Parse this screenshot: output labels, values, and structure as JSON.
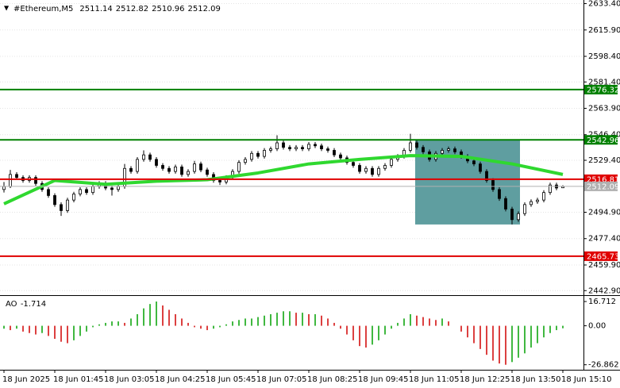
{
  "chart_data": {
    "type": "candlestick",
    "symbol": "#Ethereum,M5",
    "ylim": [
      2440.4,
      2635.8
    ],
    "yticks": [
      {
        "value": 2633.4,
        "label": "2633.40"
      },
      {
        "value": 2615.9,
        "label": "2615.90"
      },
      {
        "value": 2598.4,
        "label": "2598.40"
      },
      {
        "value": 2581.4,
        "label": "2581.40"
      },
      {
        "value": 2563.9,
        "label": "2563.90"
      },
      {
        "value": 2546.4,
        "label": "2546.40"
      },
      {
        "value": 2529.4,
        "label": "2529.40"
      },
      {
        "value": 2494.9,
        "label": "2494.90"
      },
      {
        "value": 2477.4,
        "label": "2477.40"
      },
      {
        "value": 2459.9,
        "label": "2459.90"
      },
      {
        "value": 2442.9,
        "label": "2442.90"
      }
    ],
    "grid": true,
    "up_color": "#ffffff",
    "down_color": "#000000",
    "current_color": "#b0b0b0",
    "candles": [
      [
        2510,
        2515,
        2508,
        2512
      ],
      [
        2512,
        2523,
        2511,
        2520
      ],
      [
        2520,
        2521.5,
        2516.5,
        2518
      ],
      [
        2518,
        2519.5,
        2514.5,
        2516
      ],
      [
        2516,
        2519.5,
        2514.5,
        2518
      ],
      [
        2518,
        2519.5,
        2512.5,
        2514
      ],
      [
        2514,
        2515.5,
        2508.5,
        2510
      ],
      [
        2510,
        2511.5,
        2504.5,
        2506
      ],
      [
        2506,
        2507.5,
        2498.5,
        2500
      ],
      [
        2500,
        2501.5,
        2492.5,
        2496
      ],
      [
        2496,
        2504.5,
        2494.5,
        2503
      ],
      [
        2503,
        2508.5,
        2501.5,
        2507
      ],
      [
        2507,
        2511.5,
        2505.5,
        2510
      ],
      [
        2510,
        2511.5,
        2506.5,
        2508
      ],
      [
        2508,
        2513.5,
        2506.5,
        2512
      ],
      [
        2512,
        2515.5,
        2510.5,
        2514
      ],
      [
        2514,
        2515.5,
        2509.5,
        2511
      ],
      [
        2511,
        2512.5,
        2506,
        2510
      ],
      [
        2510,
        2513.5,
        2508.5,
        2512
      ],
      [
        2512,
        2527,
        2510.5,
        2524
      ],
      [
        2524,
        2525.5,
        2520.5,
        2522
      ],
      [
        2522,
        2531.5,
        2520.5,
        2530
      ],
      [
        2530,
        2536,
        2528.5,
        2533
      ],
      [
        2533,
        2534.5,
        2528.5,
        2530
      ],
      [
        2530,
        2531.5,
        2524.5,
        2526
      ],
      [
        2526,
        2527.5,
        2522.5,
        2524
      ],
      [
        2524,
        2525.5,
        2520.5,
        2522
      ],
      [
        2522,
        2526.5,
        2520.5,
        2525
      ],
      [
        2525,
        2526.5,
        2518.5,
        2520
      ],
      [
        2520,
        2523.5,
        2518.5,
        2522
      ],
      [
        2522,
        2529,
        2520.5,
        2527
      ],
      [
        2527,
        2528.5,
        2521.5,
        2523
      ],
      [
        2523,
        2524.5,
        2518.5,
        2520
      ],
      [
        2520,
        2521.5,
        2514.5,
        2516
      ],
      [
        2516,
        2517.5,
        2513,
        2515
      ],
      [
        2515,
        2519.5,
        2513.5,
        2518
      ],
      [
        2518,
        2523.5,
        2516.5,
        2522
      ],
      [
        2522,
        2529.5,
        2520.5,
        2528
      ],
      [
        2528,
        2531.5,
        2526.5,
        2530
      ],
      [
        2530,
        2535.5,
        2528.5,
        2534
      ],
      [
        2534,
        2535.5,
        2530.5,
        2532
      ],
      [
        2532,
        2537.5,
        2530.5,
        2536
      ],
      [
        2536,
        2538.5,
        2534.5,
        2537
      ],
      [
        2537,
        2546,
        2535.5,
        2541
      ],
      [
        2541,
        2542.5,
        2536.5,
        2538
      ],
      [
        2538,
        2539.5,
        2535.5,
        2537
      ],
      [
        2537,
        2539.5,
        2535.5,
        2538
      ],
      [
        2538,
        2539.5,
        2535.5,
        2537
      ],
      [
        2537,
        2541.5,
        2535.5,
        2540
      ],
      [
        2540,
        2541.5,
        2537.5,
        2539
      ],
      [
        2539,
        2540.5,
        2535.5,
        2537
      ],
      [
        2537,
        2538.5,
        2534.5,
        2536
      ],
      [
        2536,
        2537.5,
        2531.5,
        2533
      ],
      [
        2533,
        2534.5,
        2529.5,
        2531
      ],
      [
        2531,
        2532.5,
        2526.5,
        2528
      ],
      [
        2528,
        2529.5,
        2524.5,
        2526
      ],
      [
        2526,
        2527.5,
        2520.5,
        2522
      ],
      [
        2522,
        2525.5,
        2520.5,
        2524
      ],
      [
        2524,
        2525.5,
        2518.5,
        2520
      ],
      [
        2520,
        2525.5,
        2518.5,
        2524
      ],
      [
        2524,
        2527.5,
        2522.5,
        2526
      ],
      [
        2526,
        2531.5,
        2524.5,
        2530
      ],
      [
        2530,
        2533.5,
        2528.5,
        2532
      ],
      [
        2532,
        2537.5,
        2530.5,
        2536
      ],
      [
        2536,
        2547,
        2534.5,
        2541
      ],
      [
        2541,
        2542.5,
        2536.5,
        2538
      ],
      [
        2538,
        2539.5,
        2533.5,
        2535
      ],
      [
        2535,
        2536.5,
        2528.5,
        2530
      ],
      [
        2530,
        2535.5,
        2528.5,
        2534
      ],
      [
        2534,
        2537.5,
        2532.5,
        2536
      ],
      [
        2536,
        2538.5,
        2534.5,
        2537
      ],
      [
        2537,
        2538.5,
        2533.5,
        2535
      ],
      [
        2535,
        2536.5,
        2530.5,
        2532
      ],
      [
        2532,
        2533.5,
        2527.5,
        2529
      ],
      [
        2529,
        2530.5,
        2525.5,
        2527
      ],
      [
        2527,
        2528.5,
        2520.5,
        2522
      ],
      [
        2522,
        2523.5,
        2514.5,
        2516
      ],
      [
        2516,
        2517.5,
        2508.5,
        2510
      ],
      [
        2510,
        2511.5,
        2502.5,
        2504
      ],
      [
        2504,
        2505.5,
        2495.5,
        2497
      ],
      [
        2497,
        2498.5,
        2486.8,
        2490
      ],
      [
        2490,
        2495.5,
        2488.5,
        2494
      ],
      [
        2494,
        2501.5,
        2492.5,
        2500
      ],
      [
        2500,
        2503.5,
        2498.5,
        2502
      ],
      [
        2502,
        2504.5,
        2500.5,
        2503
      ],
      [
        2503,
        2509.5,
        2501.5,
        2508
      ],
      [
        2508,
        2514.5,
        2506.5,
        2513
      ],
      [
        2513,
        2514.5,
        2509.5,
        2511
      ],
      [
        2511.14,
        2512.82,
        2510.96,
        2512.09
      ]
    ],
    "ma": {
      "color": "#2fd82f",
      "x": [
        0,
        8,
        16,
        24,
        32,
        40,
        48,
        56,
        64,
        72,
        80,
        88
      ],
      "values": [
        2500.5,
        2516,
        2513.5,
        2515.5,
        2516.5,
        2521,
        2527,
        2530,
        2532.5,
        2532,
        2527,
        2520
      ]
    },
    "levels": [
      {
        "value": 2576.32,
        "color": "#008000"
      },
      {
        "value": 2542.96,
        "color": "#008000"
      },
      {
        "value": 2516.81,
        "color": "#e00000"
      },
      {
        "value": 2465.73,
        "color": "#e00000"
      }
    ],
    "zone": {
      "color": "#5f9ea0",
      "top": 2542.96,
      "bottom": 2486.8,
      "start": 64.75,
      "end": 81.25
    },
    "ao": {
      "name": "AO",
      "ylim": [
        -30.3,
        20
      ],
      "yticks": [
        16.712,
        {
          "value": 0,
          "label": "0.00"
        },
        -26.862
      ],
      "up_color": "#00a000",
      "down_color": "#d00000",
      "values": [
        -2,
        -3,
        -2,
        -4,
        -5,
        -6,
        -5,
        -7,
        -9,
        -11,
        -12,
        -10,
        -7,
        -4,
        -1,
        1,
        2,
        3,
        3,
        2,
        5,
        8,
        12,
        15,
        16.712,
        14,
        11,
        8,
        5,
        2,
        -1,
        -2,
        -3,
        -2,
        -1,
        1,
        3,
        4,
        5,
        5,
        6,
        7,
        8,
        9,
        10,
        10,
        9,
        9,
        8,
        8,
        7,
        5,
        2,
        -2,
        -6,
        -10,
        -14,
        -15,
        -13,
        -10,
        -6,
        -2,
        2,
        5,
        8,
        7,
        6,
        5,
        4,
        5,
        3,
        0,
        -4,
        -8,
        -12,
        -16,
        -20,
        -24,
        -26,
        -26.862,
        -25,
        -22,
        -19,
        -15,
        -12,
        -8,
        -5,
        -3,
        -1.714
      ]
    },
    "time_labels": [
      "18 Jun 2025",
      "18 Jun 01:45",
      "18 Jun 03:05",
      "18 Jun 04:25",
      "18 Jun 05:45",
      "18 Jun 07:05",
      "18 Jun 08:25",
      "18 Jun 09:45",
      "18 Jun 11:05",
      "18 Jun 12:25",
      "18 Jun 13:50",
      "18 Jun 15:10"
    ]
  }
}
